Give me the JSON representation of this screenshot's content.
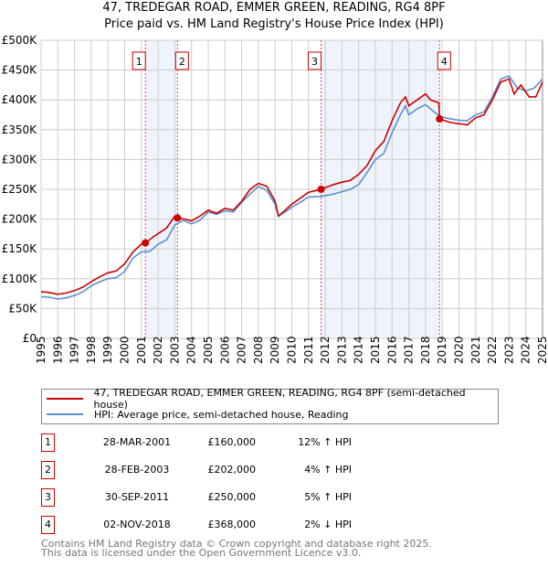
{
  "chart_data": {
    "type": "line",
    "title": "47, TREDEGAR ROAD, EMMER GREEN, READING, RG4 8PF",
    "subtitle": "Price paid vs. HM Land Registry's House Price Index (HPI)",
    "xlim": [
      1995,
      2025
    ],
    "ylim": [
      0,
      500000
    ],
    "y_ticks": [
      {
        "v": 0,
        "label": "£0"
      },
      {
        "v": 50000,
        "label": "£50K"
      },
      {
        "v": 100000,
        "label": "£100K"
      },
      {
        "v": 150000,
        "label": "£150K"
      },
      {
        "v": 200000,
        "label": "£200K"
      },
      {
        "v": 250000,
        "label": "£250K"
      },
      {
        "v": 300000,
        "label": "£300K"
      },
      {
        "v": 350000,
        "label": "£350K"
      },
      {
        "v": 400000,
        "label": "£400K"
      },
      {
        "v": 450000,
        "label": "£450K"
      },
      {
        "v": 500000,
        "label": "£500K"
      }
    ],
    "x_ticks": [
      "1995",
      "1996",
      "1997",
      "1998",
      "1999",
      "2000",
      "2001",
      "2002",
      "2003",
      "2004",
      "2005",
      "2006",
      "2007",
      "2008",
      "2009",
      "2010",
      "2011",
      "2012",
      "2013",
      "2014",
      "2015",
      "2016",
      "2017",
      "2018",
      "2019",
      "2020",
      "2021",
      "2022",
      "2023",
      "2024",
      "2025"
    ],
    "grid": true,
    "shaded_periods": [
      [
        2001.24,
        2003.16
      ],
      [
        2011.75,
        2018.84
      ]
    ],
    "series": [
      {
        "name": "47, TREDEGAR ROAD, EMMER GREEN, READING, RG4 8PF (semi-detached house)",
        "color": "#cc0000",
        "x": [
          1995,
          1995.5,
          1996,
          1996.5,
          1997,
          1997.5,
          1998,
          1998.5,
          1999,
          1999.5,
          2000,
          2000.5,
          2001,
          2001.24,
          2001.8,
          2002.5,
          2003,
          2003.16,
          2003.6,
          2004,
          2004.5,
          2005,
          2005.5,
          2006,
          2006.5,
          2007,
          2007.5,
          2008,
          2008.5,
          2009,
          2009.2,
          2009.6,
          2010,
          2010.5,
          2011,
          2011.75,
          2012.5,
          2013,
          2013.5,
          2014,
          2014.5,
          2015,
          2015.5,
          2016,
          2016.5,
          2016.8,
          2017,
          2017.5,
          2018,
          2018.3,
          2018.8,
          2018.84,
          2019.5,
          2020,
          2020.5,
          2021,
          2021.5,
          2022,
          2022.5,
          2023,
          2023.3,
          2023.7,
          2024.2,
          2024.6,
          2025
        ],
        "y": [
          78000,
          77000,
          74000,
          76000,
          80000,
          86000,
          95000,
          103000,
          110000,
          113000,
          125000,
          145000,
          158000,
          160000,
          172000,
          185000,
          205000,
          202000,
          200000,
          197000,
          205000,
          215000,
          210000,
          218000,
          215000,
          230000,
          250000,
          260000,
          255000,
          230000,
          205000,
          215000,
          225000,
          235000,
          245000,
          250000,
          258000,
          262000,
          265000,
          275000,
          290000,
          315000,
          330000,
          365000,
          395000,
          405000,
          390000,
          400000,
          410000,
          400000,
          395000,
          368000,
          362000,
          360000,
          358000,
          370000,
          375000,
          400000,
          430000,
          435000,
          410000,
          425000,
          405000,
          405000,
          430000
        ]
      },
      {
        "name": "HPI: Average price, semi-detached house, Reading",
        "color": "#5b8fd4",
        "x": [
          1995,
          1995.5,
          1996,
          1996.5,
          1997,
          1997.5,
          1998,
          1998.5,
          1999,
          1999.5,
          2000,
          2000.5,
          2001,
          2001.5,
          2002,
          2002.5,
          2003,
          2003.5,
          2004,
          2004.5,
          2005,
          2005.5,
          2006,
          2006.5,
          2007,
          2007.5,
          2008,
          2008.5,
          2009,
          2009.2,
          2009.6,
          2010,
          2010.5,
          2011,
          2011.75,
          2012.5,
          2013,
          2013.5,
          2014,
          2014.5,
          2015,
          2015.5,
          2016,
          2016.5,
          2016.8,
          2017,
          2017.5,
          2018,
          2018.5,
          2018.9,
          2019.5,
          2020,
          2020.5,
          2021,
          2021.5,
          2022,
          2022.5,
          2023,
          2023.5,
          2024,
          2024.5,
          2025
        ],
        "y": [
          70000,
          69000,
          66000,
          68000,
          72000,
          78000,
          88000,
          95000,
          100000,
          102000,
          112000,
          135000,
          145000,
          146000,
          158000,
          165000,
          190000,
          198000,
          192000,
          198000,
          212000,
          208000,
          214000,
          212000,
          228000,
          242000,
          255000,
          248000,
          225000,
          205000,
          212000,
          220000,
          228000,
          237000,
          238000,
          242000,
          246000,
          250000,
          258000,
          278000,
          300000,
          310000,
          345000,
          375000,
          390000,
          375000,
          385000,
          392000,
          380000,
          372000,
          368000,
          366000,
          365000,
          375000,
          380000,
          405000,
          435000,
          440000,
          420000,
          415000,
          420000,
          435000
        ]
      }
    ],
    "sales": [
      {
        "num": "1",
        "date": "28-MAR-2001",
        "x": 2001.24,
        "price_label": "£160,000",
        "price": 160000,
        "hpi": "12% ↑ HPI"
      },
      {
        "num": "2",
        "date": "28-FEB-2003",
        "x": 2003.16,
        "price_label": "£202,000",
        "price": 202000,
        "hpi": "4% ↑ HPI"
      },
      {
        "num": "3",
        "date": "30-SEP-2011",
        "x": 2011.75,
        "price_label": "£250,000",
        "price": 250000,
        "hpi": "5% ↑ HPI"
      },
      {
        "num": "4",
        "date": "02-NOV-2018",
        "x": 2018.84,
        "price_label": "£368,000",
        "price": 368000,
        "hpi": "2% ↓ HPI"
      }
    ]
  },
  "footer": {
    "line1": "Contains HM Land Registry data © Crown copyright and database right 2025.",
    "line2": "This data is licensed under the Open Government Licence v3.0."
  }
}
